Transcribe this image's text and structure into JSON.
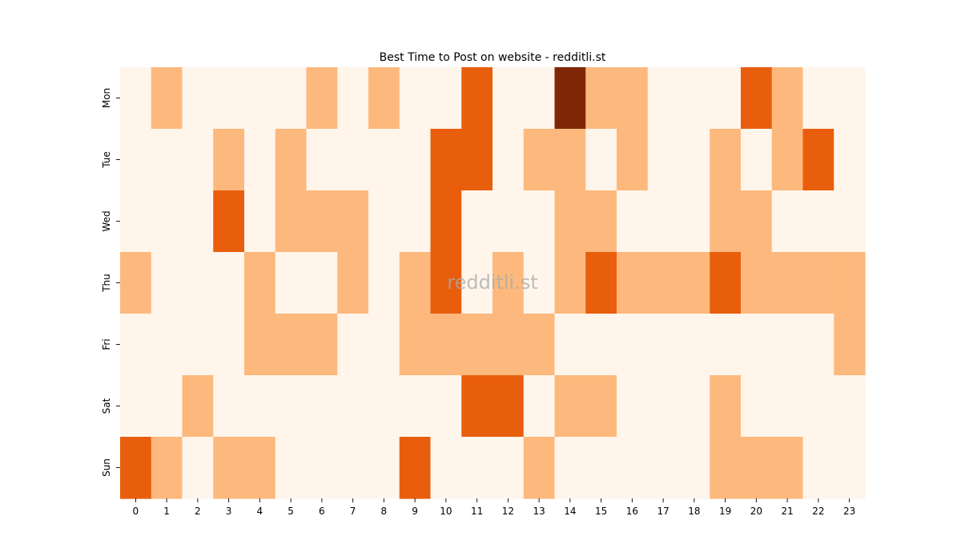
{
  "chart_data": {
    "type": "heatmap",
    "title": "Best Time to Post on website - redditli.st",
    "xlabel": "",
    "ylabel": "",
    "x_categories": [
      "0",
      "1",
      "2",
      "3",
      "4",
      "5",
      "6",
      "7",
      "8",
      "9",
      "10",
      "11",
      "12",
      "13",
      "14",
      "15",
      "16",
      "17",
      "18",
      "19",
      "20",
      "21",
      "22",
      "23"
    ],
    "y_categories": [
      "Mon",
      "Tue",
      "Wed",
      "Thu",
      "Fri",
      "Sat",
      "Sun"
    ],
    "values": [
      [
        0,
        1,
        0,
        0,
        0,
        0,
        1,
        0,
        1,
        0,
        0,
        2,
        0,
        0,
        3,
        1,
        1,
        0,
        0,
        0,
        2,
        1,
        0,
        0
      ],
      [
        0,
        0,
        0,
        1,
        0,
        1,
        0,
        0,
        0,
        0,
        2,
        2,
        0,
        1,
        1,
        0,
        1,
        0,
        0,
        1,
        0,
        1,
        2,
        0
      ],
      [
        0,
        0,
        0,
        2,
        0,
        1,
        1,
        1,
        0,
        0,
        2,
        0,
        0,
        0,
        1,
        1,
        0,
        0,
        0,
        1,
        1,
        0,
        0,
        0
      ],
      [
        1,
        0,
        0,
        0,
        1,
        0,
        0,
        1,
        0,
        1,
        2,
        0,
        1,
        0,
        1,
        2,
        1,
        1,
        1,
        2,
        1,
        1,
        1,
        1
      ],
      [
        0,
        0,
        0,
        0,
        1,
        1,
        1,
        0,
        0,
        1,
        1,
        1,
        1,
        1,
        0,
        0,
        0,
        0,
        0,
        0,
        0,
        0,
        0,
        1
      ],
      [
        0,
        0,
        1,
        0,
        0,
        0,
        0,
        0,
        0,
        0,
        0,
        2,
        2,
        0,
        1,
        1,
        0,
        0,
        0,
        1,
        0,
        0,
        0,
        0
      ],
      [
        2,
        1,
        0,
        1,
        1,
        0,
        0,
        0,
        0,
        2,
        0,
        0,
        0,
        1,
        0,
        0,
        0,
        0,
        0,
        1,
        1,
        1,
        0,
        0
      ]
    ],
    "vmin": 0,
    "vmax": 3,
    "colormap": [
      "#fff5eb",
      "#fdb97d",
      "#e95e0d",
      "#7f2704"
    ],
    "watermark": "redditli.st",
    "grid": false,
    "legend": "none"
  }
}
